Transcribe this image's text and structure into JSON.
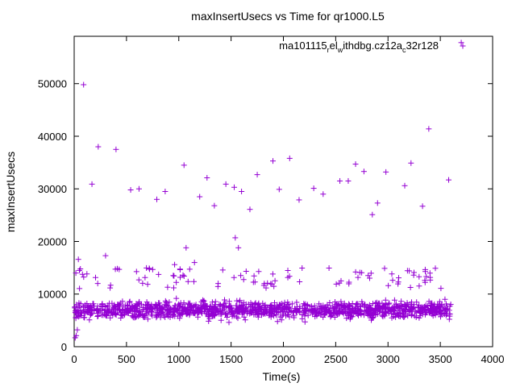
{
  "chart_data": {
    "type": "scatter",
    "title": "maxInsertUsecs vs Time for qr1000.L5",
    "xlabel": "Time(s)",
    "ylabel": "maxInsertUsecs",
    "xlim": [
      0,
      4000
    ],
    "ylim": [
      0,
      59000
    ],
    "xticks": [
      0,
      500,
      1000,
      1500,
      2000,
      2500,
      3000,
      3500,
      4000
    ],
    "yticks": [
      0,
      10000,
      20000,
      30000,
      40000,
      50000
    ],
    "grid": false,
    "legend_position": "top-right",
    "series": [
      {
        "name": "ma101115_rel_withdbg.cz12a_c32r128",
        "name_parts": [
          "ma101115",
          "r",
          "el",
          "w",
          "ithdbg.cz12a",
          "c",
          "32r128"
        ],
        "color": "#9400d3",
        "marker": "plus",
        "dense_band": {
          "x_start": 0,
          "x_end": 3600,
          "typical_low": 3500,
          "typical_high": 11000,
          "median": 7000
        },
        "points": [
          [
            10,
            1700
          ],
          [
            20,
            2100
          ],
          [
            30,
            3200
          ],
          [
            40,
            16600
          ],
          [
            50,
            14500
          ],
          [
            90,
            49800
          ],
          [
            170,
            30900
          ],
          [
            230,
            38000
          ],
          [
            300,
            17300
          ],
          [
            400,
            37500
          ],
          [
            540,
            29800
          ],
          [
            620,
            30000
          ],
          [
            790,
            28000
          ],
          [
            870,
            29500
          ],
          [
            960,
            15600
          ],
          [
            1050,
            34500
          ],
          [
            1070,
            18800
          ],
          [
            1150,
            16000
          ],
          [
            1200,
            28500
          ],
          [
            1270,
            32100
          ],
          [
            1340,
            26800
          ],
          [
            1450,
            30900
          ],
          [
            1530,
            30300
          ],
          [
            1540,
            20700
          ],
          [
            1570,
            18800
          ],
          [
            1600,
            29500
          ],
          [
            1680,
            26100
          ],
          [
            1750,
            32700
          ],
          [
            1900,
            35300
          ],
          [
            1960,
            29900
          ],
          [
            2060,
            35800
          ],
          [
            2150,
            27900
          ],
          [
            2290,
            30100
          ],
          [
            2380,
            29000
          ],
          [
            2540,
            31500
          ],
          [
            2620,
            31500
          ],
          [
            2690,
            34700
          ],
          [
            2770,
            33300
          ],
          [
            2850,
            25100
          ],
          [
            2900,
            27300
          ],
          [
            2980,
            33200
          ],
          [
            3160,
            30600
          ],
          [
            3220,
            34900
          ],
          [
            3330,
            26700
          ],
          [
            3390,
            41400
          ],
          [
            3580,
            31700
          ],
          [
            3700,
            57800
          ]
        ]
      }
    ]
  }
}
